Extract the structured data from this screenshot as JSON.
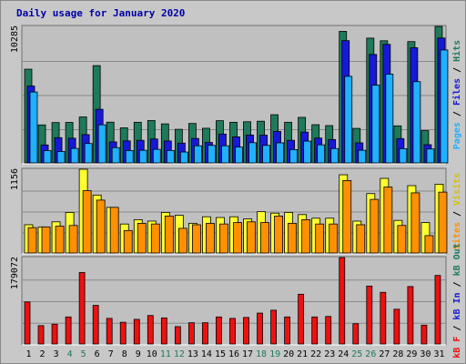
{
  "chart_data": {
    "type": "bar",
    "title": "Daily usage for January 2020",
    "x": [
      1,
      2,
      3,
      4,
      5,
      6,
      7,
      8,
      9,
      10,
      11,
      12,
      13,
      14,
      15,
      16,
      17,
      18,
      19,
      20,
      21,
      22,
      23,
      24,
      25,
      26,
      27,
      28,
      29,
      30,
      31
    ],
    "weekend_days": [
      4,
      5,
      11,
      12,
      18,
      19,
      25,
      26
    ],
    "panels": [
      {
        "name": "hits-files-pages",
        "max_label": "10285",
        "max": 10285,
        "legend": [
          "Pages",
          "Files",
          "Hits"
        ],
        "series": [
          {
            "name": "Hits",
            "color": "#1e7a5a",
            "values": [
              7060,
              2860,
              3040,
              3050,
              3460,
              7330,
              3070,
              2640,
              3060,
              3190,
              2940,
              2530,
              2970,
              2610,
              3180,
              3060,
              3100,
              3140,
              3630,
              3060,
              3430,
              2880,
              2810,
              9910,
              2600,
              9400,
              9200,
              2790,
              9140,
              2430,
              10285
            ]
          },
          {
            "name": "Files",
            "color": "#1818d8",
            "values": [
              5790,
              1350,
              1900,
              1860,
              2130,
              4040,
              1580,
              1660,
              1700,
              1800,
              1650,
              1490,
              1840,
              1540,
              2170,
              1960,
              2100,
              2090,
              2370,
              1700,
              2320,
              1870,
              1760,
              9210,
              1510,
              8170,
              8930,
              1830,
              8680,
              1370,
              9410
            ]
          },
          {
            "name": "Pages",
            "color": "#20b0ff",
            "values": [
              5340,
              920,
              860,
              1090,
              1460,
              2870,
              1150,
              930,
              950,
              1020,
              930,
              820,
              1290,
              1320,
              1290,
              1190,
              1520,
              1320,
              1510,
              1000,
              1640,
              1360,
              1080,
              6520,
              950,
              5860,
              6690,
              1070,
              6120,
              1050,
              8510
            ]
          }
        ]
      },
      {
        "name": "visits-sites",
        "max_label": "1156",
        "max": 1156,
        "legend": [
          "Sites",
          "Visits"
        ],
        "series": [
          {
            "name": "Visits",
            "color": "#ffff30",
            "values": [
              390,
              360,
              430,
              560,
              1156,
              800,
              630,
              400,
              460,
              440,
              560,
              520,
              410,
              500,
              490,
              500,
              470,
              570,
              550,
              560,
              530,
              480,
              480,
              1080,
              440,
              820,
              1030,
              450,
              930,
              420,
              950
            ]
          },
          {
            "name": "Sites",
            "color": "#ff9000",
            "values": [
              350,
              360,
              370,
              380,
              860,
              730,
              630,
              310,
              410,
              400,
              510,
              340,
              390,
              410,
              400,
              420,
              430,
              420,
              510,
              410,
              460,
              400,
              400,
              1000,
              390,
              740,
              910,
              380,
              830,
              240,
              840
            ]
          }
        ]
      },
      {
        "name": "kbin-kbout-kbf",
        "max_label": "179072",
        "max": 179072,
        "legend": [
          "kB F",
          "kB In",
          "kB Out"
        ],
        "series": [
          {
            "name": "kB F",
            "color": "#ee1010",
            "values": [
              87000,
              38000,
              41000,
              56000,
              148000,
              80000,
              53000,
              45000,
              51000,
              59000,
              54000,
              36000,
              44000,
              44000,
              56000,
              53000,
              55000,
              64000,
              70000,
              56000,
              103000,
              56000,
              57000,
              179072,
              42000,
              120000,
              107000,
              72000,
              119000,
              39000,
              142000
            ]
          }
        ]
      }
    ]
  }
}
